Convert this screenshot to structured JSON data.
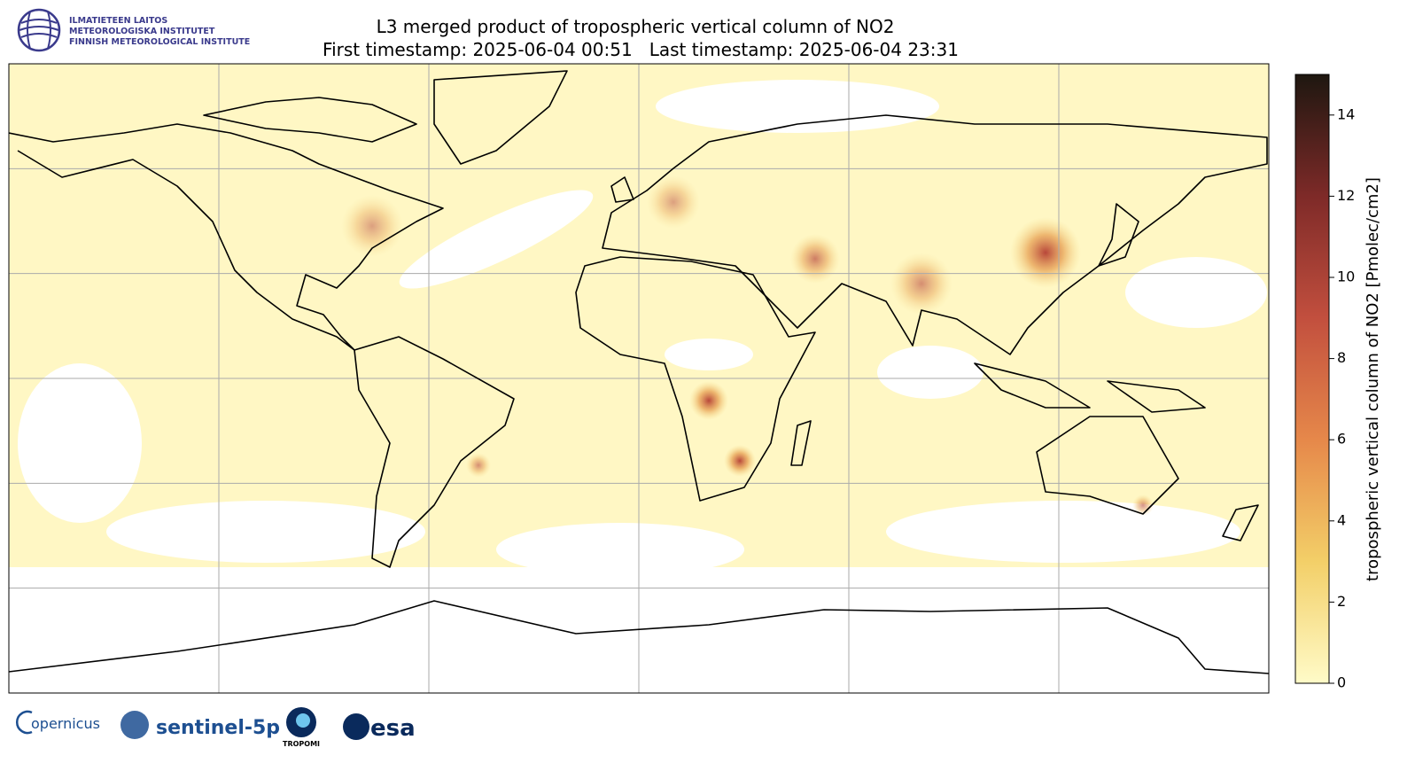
{
  "header": {
    "logo_lines": [
      "ILMATIETEEN LAITOS",
      "METEOROLOGISKA INSTITUTET",
      "FINNISH METEOROLOGICAL INSTITUTE"
    ],
    "title": "L3 merged product of tropospheric vertical column of NO2",
    "subtitle": "First timestamp: 2025-06-04 00:51   Last timestamp: 2025-06-04 23:31"
  },
  "map": {
    "lon_range": [
      -180,
      180
    ],
    "lat_range": [
      90,
      -90
    ],
    "lon_grid": [
      -120,
      -60,
      0,
      60,
      120
    ],
    "lat_grid": [
      60,
      30,
      0,
      -30,
      -60
    ]
  },
  "colorbar": {
    "label": "tropospheric vertical column of NO2 [Pmolec/cm2]",
    "range": [
      0,
      15
    ],
    "ticks": [
      0,
      2,
      4,
      6,
      8,
      10,
      12,
      14
    ],
    "colors": [
      "#fffbc8",
      "#f3cf68",
      "#e6884a",
      "#c24f3e",
      "#7e2a28",
      "#1e1710"
    ]
  },
  "footer": {
    "logos": [
      "opernicus",
      "sentinel-5p",
      "TROPOMI",
      "esa"
    ]
  }
}
